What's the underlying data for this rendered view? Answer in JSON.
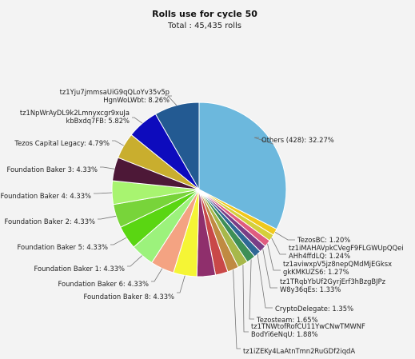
{
  "chart_data": {
    "type": "pie",
    "title": "Rolls use for cycle 50",
    "subtitle": "Total : 45,435 rolls",
    "slices": [
      {
        "name": "Others (428)",
        "label": [
          "Others (428): 32.27%"
        ],
        "value": 32.27,
        "color": "#6cb8dd",
        "show_label": true
      },
      {
        "name": "TezosBC",
        "label": [
          "TezosBC: 1.20%"
        ],
        "value": 1.2,
        "color": "#f0c91c",
        "show_label": true
      },
      {
        "name": "tz1iMAHAVpkCVegF9FLGWUpQQeiAHh4ffdLQ",
        "label": [
          "tz1iMAHAVpkCVegF9FLGWUpQQei",
          "AHh4ffdLQ: 1.24%"
        ],
        "value": 1.24,
        "color": "#d4cf3c",
        "show_label": true
      },
      {
        "name": "tz1aviwxpV5jz8nepQMdMjEGksxgkKMKUZS6",
        "label": [
          "tz1aviwxpV5jz8nepQMdMjEGksx",
          "gkKMKUZS6: 1.27%"
        ],
        "value": 1.27,
        "color": "#e05c80",
        "show_label": true
      },
      {
        "name": "tz1TRqbYbUf2GyrjErf3hBzgBJPzW8y36qEs",
        "label": [
          "tz1TRqbYbUf2GyrjErf3hBzgBJPz",
          "W8y36qEs: 1.33%"
        ],
        "value": 1.33,
        "color": "#7a3e86",
        "show_label": true
      },
      {
        "name": "CryptoDelegate",
        "label": [
          "CryptoDelegate: 1.35%"
        ],
        "value": 1.35,
        "color": "#2f6896",
        "show_label": true
      },
      {
        "name": "Tezosteam",
        "label": [
          "Tezosteam: 1.65%"
        ],
        "value": 1.65,
        "color": "#3d8f57",
        "show_label": true
      },
      {
        "name": "tz1TNWtofRofCU11YwCNwTMWNFBodYi6eNqU",
        "label": [
          "tz1TNWtofRofCU11YwCNwTMWNF",
          "BodYi6eNqU: 1.88%"
        ],
        "value": 1.88,
        "color": "#a7b84a",
        "show_label": true
      },
      {
        "name": "tz1iZEKy4LaAtnTmn2RuGDf2iqdA",
        "label": [
          "tz1iZEKy4LaAtnTmn2RuGDf2iqdA"
        ],
        "value": 2.1,
        "color": "#c08a42",
        "show_label": true
      },
      {
        "name": "unlabeled-1",
        "label": [],
        "value": 2.3,
        "color": "#c94848",
        "show_label": false
      },
      {
        "name": "unlabeled-2",
        "label": [],
        "value": 3.4,
        "color": "#8f2f6c",
        "show_label": false
      },
      {
        "name": "Foundation Baker 8",
        "label": [
          "Foundation Baker 8: 4.33%"
        ],
        "value": 4.33,
        "color": "#f5f535",
        "show_label": true
      },
      {
        "name": "Foundation Baker 6",
        "label": [
          "Foundation Baker 6: 4.33%"
        ],
        "value": 4.33,
        "color": "#f4a382",
        "show_label": true
      },
      {
        "name": "Foundation Baker 1",
        "label": [
          "Foundation Baker 1: 4.33%"
        ],
        "value": 4.33,
        "color": "#9cf27c",
        "show_label": true
      },
      {
        "name": "Foundation Baker 5",
        "label": [
          "Foundation Baker 5: 4.33%"
        ],
        "value": 4.33,
        "color": "#5ad612",
        "show_label": true
      },
      {
        "name": "Foundation Baker 2",
        "label": [
          "Foundation Baker 2: 4.33%"
        ],
        "value": 4.33,
        "color": "#78d43a",
        "show_label": true
      },
      {
        "name": "Foundation Baker 4",
        "label": [
          "Foundation Baker 4: 4.33%"
        ],
        "value": 4.33,
        "color": "#a8f470",
        "show_label": true
      },
      {
        "name": "Foundation Baker 3",
        "label": [
          "Foundation Baker 3: 4.33%"
        ],
        "value": 4.33,
        "color": "#4d1837",
        "show_label": true
      },
      {
        "name": "Tezos Capital Legacy",
        "label": [
          "Tezos Capital Legacy: 4.79%"
        ],
        "value": 4.79,
        "color": "#c9ae2e",
        "show_label": true
      },
      {
        "name": "tz1NpWrAyDL9k2Lmnyxcgr9xuJakbBxdq7FB",
        "label": [
          "tz1NpWrAyDL9k2Lmnyxcgr9xuJa",
          "kbBxdq7FB: 5.82%"
        ],
        "value": 5.82,
        "color": "#0d0bbd",
        "show_label": true
      },
      {
        "name": "tz1Yju7jmmsaUiG9qQLoYv35v5pHgnWoLWbt",
        "label": [
          "tz1Yju7jmmsaUiG9qQLoYv35v5p",
          "HgnWoLWbt: 8.26%"
        ],
        "value": 8.26,
        "color": "#235a92",
        "show_label": true
      }
    ]
  }
}
